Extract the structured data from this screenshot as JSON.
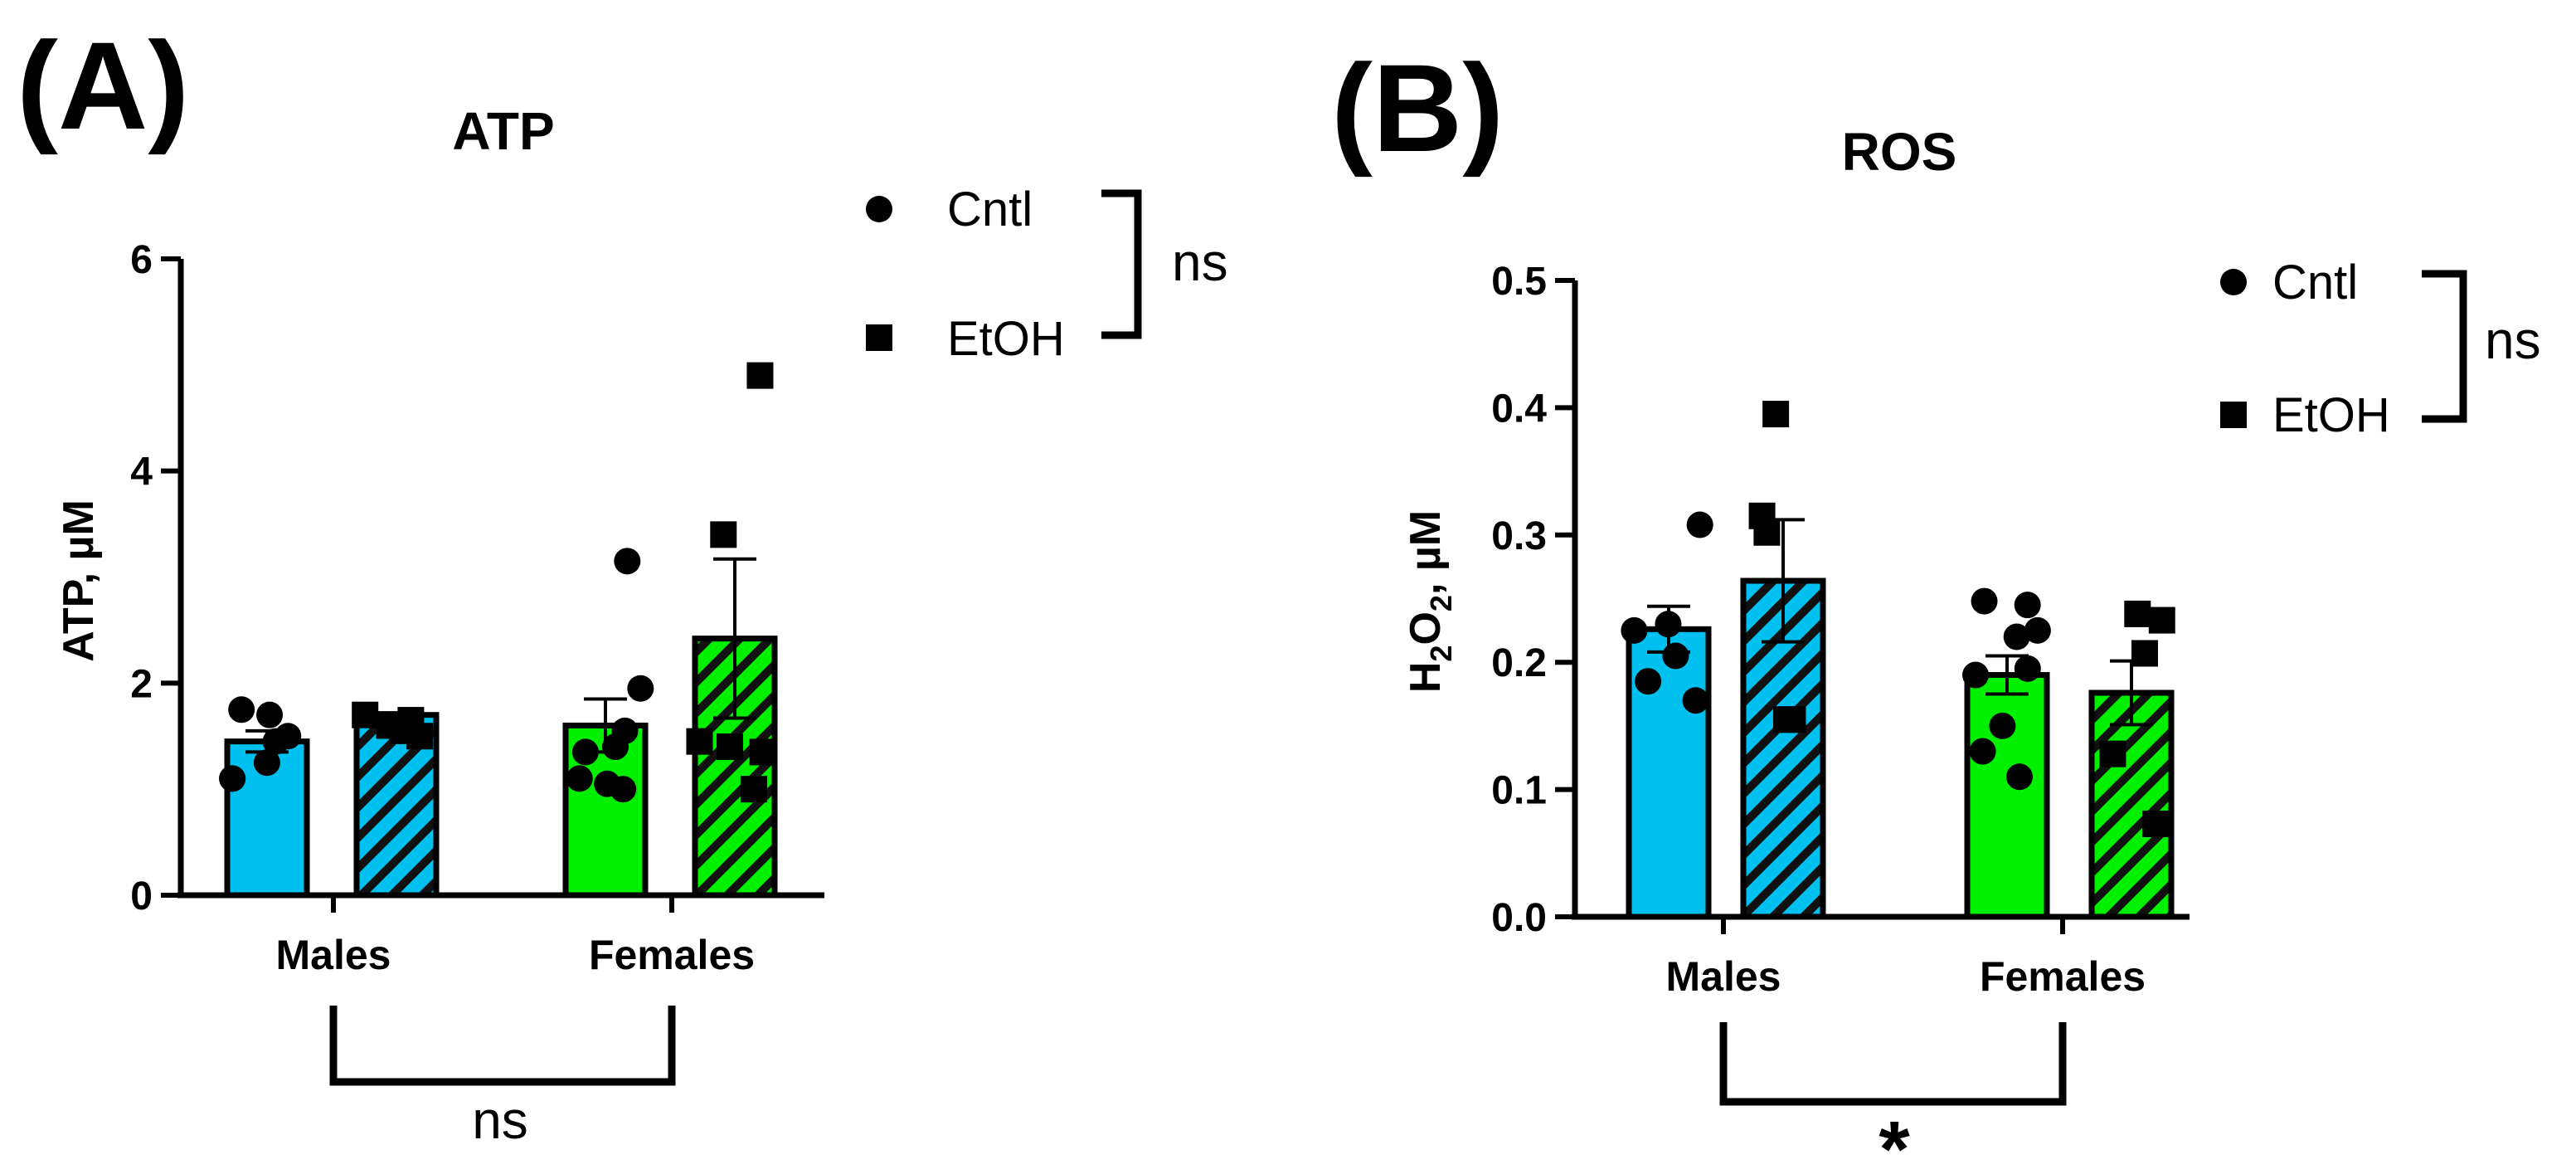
{
  "chart_data": [
    {
      "type": "bar",
      "panel_label": "(A)",
      "title": "ATP",
      "ylabel": "ATP, µM",
      "ylabel_html": "ATP, µM",
      "ylim": [
        0,
        6
      ],
      "yticks": [
        0,
        2,
        4,
        6
      ],
      "tick_labels": [
        "0",
        "2",
        "4",
        "6"
      ],
      "categories": [
        "Males",
        "Females"
      ],
      "series": [
        {
          "name": "Cntl",
          "marker": "circle",
          "pattern": "solid",
          "means": [
            1.45,
            1.6
          ],
          "sem": [
            0.1,
            0.25
          ],
          "points": [
            [
              1.75,
              1.7,
              1.5,
              1.45,
              1.25,
              1.1,
              1.1
            ],
            [
              3.15,
              1.95,
              1.55,
              1.4,
              1.35,
              1.1,
              1.05,
              1.0
            ]
          ]
        },
        {
          "name": "EtOH",
          "marker": "square",
          "pattern": "hatched",
          "means": [
            1.7,
            2.42
          ],
          "sem": [
            0.02,
            0.75
          ],
          "points": [
            [
              1.7,
              1.65,
              1.6,
              1.55,
              1.5
            ],
            [
              4.9,
              3.4,
              1.45,
              1.4,
              1.35,
              1.0
            ]
          ]
        }
      ],
      "colors": {
        "Males": "#00C0F0",
        "Females": "#00F000"
      },
      "legend": {
        "entries": [
          "Cntl",
          "EtOH"
        ],
        "sig": "ns",
        "placement": "top-right"
      },
      "group_comparison": {
        "label": "ns",
        "between": [
          "Males",
          "Females"
        ]
      }
    },
    {
      "type": "bar",
      "panel_label": "(B)",
      "title": "ROS",
      "ylabel": "H2O2, µM",
      "ylabel_parts": [
        "H",
        "2",
        "O",
        "2",
        ", µM"
      ],
      "ylim": [
        0,
        0.5
      ],
      "yticks": [
        0.0,
        0.1,
        0.2,
        0.3,
        0.4,
        0.5
      ],
      "tick_labels": [
        "0.0",
        "0.1",
        "0.2",
        "0.3",
        "0.4",
        "0.5"
      ],
      "categories": [
        "Males",
        "Females"
      ],
      "series": [
        {
          "name": "Cntl",
          "marker": "circle",
          "pattern": "solid",
          "means": [
            0.226,
            0.19
          ],
          "sem": [
            0.018,
            0.015
          ],
          "points": [
            [
              0.308,
              0.23,
              0.225,
              0.205,
              0.185,
              0.17
            ],
            [
              0.248,
              0.245,
              0.225,
              0.22,
              0.195,
              0.19,
              0.15,
              0.13,
              0.11
            ]
          ]
        },
        {
          "name": "EtOH",
          "marker": "square",
          "pattern": "hatched",
          "means": [
            0.264,
            0.176
          ],
          "sem": [
            0.048,
            0.025
          ],
          "points": [
            [
              0.395,
              0.315,
              0.302,
              0.155,
              0.155
            ],
            [
              0.238,
              0.233,
              0.207,
              0.128,
              0.073
            ]
          ]
        }
      ],
      "colors": {
        "Males": "#00C0F0",
        "Females": "#00F000"
      },
      "legend": {
        "entries": [
          "Cntl",
          "EtOH"
        ],
        "sig": "ns",
        "placement": "top-right"
      },
      "group_comparison": {
        "label": "*",
        "between": [
          "Males",
          "Females"
        ]
      }
    }
  ]
}
